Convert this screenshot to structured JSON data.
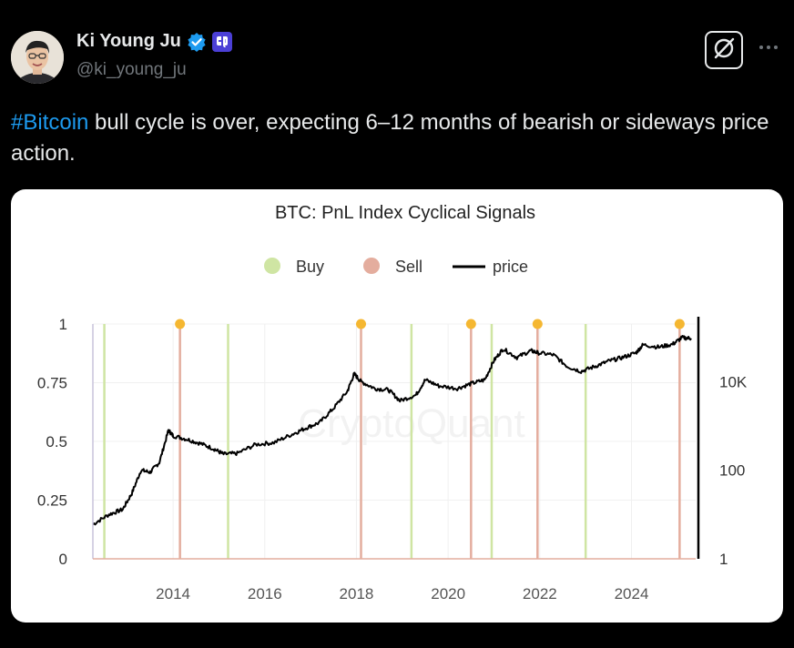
{
  "author": {
    "display_name": "Ki Young Ju",
    "handle": "@ki_young_ju"
  },
  "tweet": {
    "hashtag": "#Bitcoin",
    "text": " bull cycle is over, expecting 6–12 months of bearish or sideways price action."
  },
  "icons": {
    "verified": "verified-badge-icon",
    "affiliation": "cryptoquant-affiliate-icon",
    "grok": "grok-icon",
    "more": "more-dots-icon"
  },
  "colors": {
    "background": "#000000",
    "hashtag": "#1d9bf0",
    "verified": "#1d9bf0",
    "affiliation": "#4b3fd6",
    "buy": "#cfe5a3",
    "sell": "#e4ad9e",
    "marker": "#f5b731",
    "price": "#000000",
    "handle_text": "#71767b"
  },
  "chart_data": {
    "type": "line",
    "title": "BTC: PnL Index Cyclical Signals",
    "watermark": "CryptoQuant",
    "legend": [
      "Buy",
      "Sell",
      "price"
    ],
    "legend_position": "top-center",
    "xlabel": "",
    "ylabel_left": "",
    "ylabel_right": "",
    "x_ticks": [
      "2014",
      "2016",
      "2018",
      "2020",
      "2022",
      "2024"
    ],
    "x_range": [
      2012.25,
      2025.4
    ],
    "y_left_ticks": [
      "0",
      "0.25",
      "0.5",
      "0.75",
      "1"
    ],
    "y_left_range": [
      0,
      1
    ],
    "y_right_ticks": [
      "1",
      "100",
      "10K"
    ],
    "y_right_scale": "log",
    "y_right_range": [
      1,
      200000
    ],
    "grid": true,
    "buy_signals": [
      2012.5,
      2015.2,
      2019.2,
      2020.95,
      2023.0
    ],
    "sell_signals": [
      2014.15,
      2018.1,
      2020.5,
      2021.95,
      2025.05
    ],
    "signal_markers_at_top": [
      2014.15,
      2018.1,
      2020.5,
      2021.95,
      2025.05
    ],
    "series": [
      {
        "name": "price",
        "x": [
          2012.25,
          2012.6,
          2012.9,
          2013.1,
          2013.3,
          2013.5,
          2013.7,
          2013.9,
          2014.0,
          2014.3,
          2014.6,
          2014.9,
          2015.1,
          2015.4,
          2015.8,
          2016.2,
          2016.6,
          2016.9,
          2017.2,
          2017.5,
          2017.8,
          2017.95,
          2018.1,
          2018.4,
          2018.7,
          2018.95,
          2019.3,
          2019.5,
          2019.8,
          2020.2,
          2020.5,
          2020.8,
          2021.0,
          2021.2,
          2021.5,
          2021.8,
          2021.95,
          2022.3,
          2022.6,
          2022.9,
          2023.2,
          2023.5,
          2023.8,
          2024.1,
          2024.25,
          2024.6,
          2024.9,
          2025.1,
          2025.3
        ],
        "y": [
          6,
          10,
          13,
          30,
          100,
          90,
          150,
          800,
          600,
          500,
          400,
          300,
          230,
          240,
          380,
          420,
          650,
          900,
          1200,
          2500,
          6000,
          15000,
          10000,
          7000,
          6500,
          3700,
          5000,
          11000,
          8000,
          7000,
          9000,
          11000,
          30000,
          55000,
          35000,
          50000,
          45000,
          40000,
          22000,
          17000,
          22000,
          29000,
          35000,
          45000,
          68000,
          60000,
          70000,
          98000,
          95000
        ]
      }
    ]
  }
}
